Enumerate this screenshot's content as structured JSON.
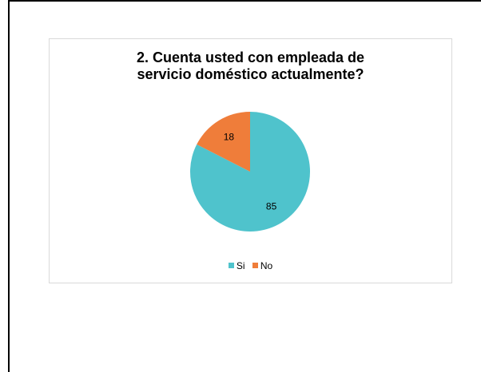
{
  "chart_data": {
    "type": "pie",
    "title_lines": [
      "2. Cuenta usted con empleada de",
      "servicio doméstico actualmente?"
    ],
    "categories": [
      "Si",
      "No"
    ],
    "values": [
      85,
      18
    ],
    "colors": [
      "#4fc3cc",
      "#ef7d3a"
    ],
    "data_labels": [
      "85",
      "18"
    ],
    "legend_position": "bottom"
  }
}
